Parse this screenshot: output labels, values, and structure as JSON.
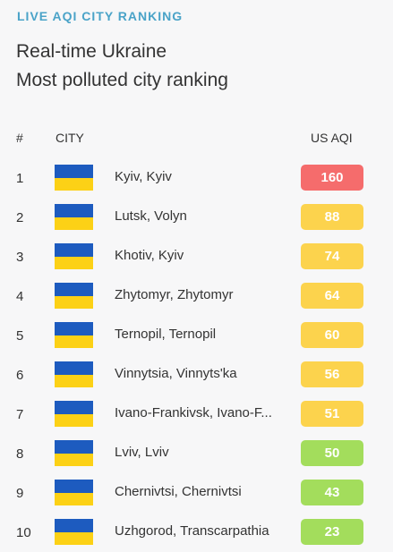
{
  "header": {
    "eyebrow": "LIVE AQI CITY RANKING",
    "title_line1": "Real-time Ukraine",
    "title_line2": "Most polluted city ranking"
  },
  "table": {
    "col_rank": "#",
    "col_city": "CITY",
    "col_aqi": "US AQI",
    "flag_colors": {
      "top": "#1d5bbf",
      "bottom": "#fcd116"
    },
    "rows": [
      {
        "rank": "1",
        "city": "Kyiv, Kyiv",
        "aqi": "160",
        "color": "#f56c6c"
      },
      {
        "rank": "2",
        "city": "Lutsk, Volyn",
        "aqi": "88",
        "color": "#fcd34d"
      },
      {
        "rank": "3",
        "city": "Khotiv, Kyiv",
        "aqi": "74",
        "color": "#fcd34d"
      },
      {
        "rank": "4",
        "city": "Zhytomyr, Zhytomyr",
        "aqi": "64",
        "color": "#fcd34d"
      },
      {
        "rank": "5",
        "city": "Ternopil, Ternopil",
        "aqi": "60",
        "color": "#fcd34d"
      },
      {
        "rank": "6",
        "city": "Vinnytsia, Vinnyts'ka",
        "aqi": "56",
        "color": "#fcd34d"
      },
      {
        "rank": "7",
        "city": "Ivano-Frankivsk, Ivano-F...",
        "aqi": "51",
        "color": "#fcd34d"
      },
      {
        "rank": "8",
        "city": "Lviv, Lviv",
        "aqi": "50",
        "color": "#a3dd5c"
      },
      {
        "rank": "9",
        "city": "Chernivtsi, Chernivtsi",
        "aqi": "43",
        "color": "#a3dd5c"
      },
      {
        "rank": "10",
        "city": "Uzhgorod, Transcarpathia",
        "aqi": "23",
        "color": "#a3dd5c"
      }
    ]
  }
}
